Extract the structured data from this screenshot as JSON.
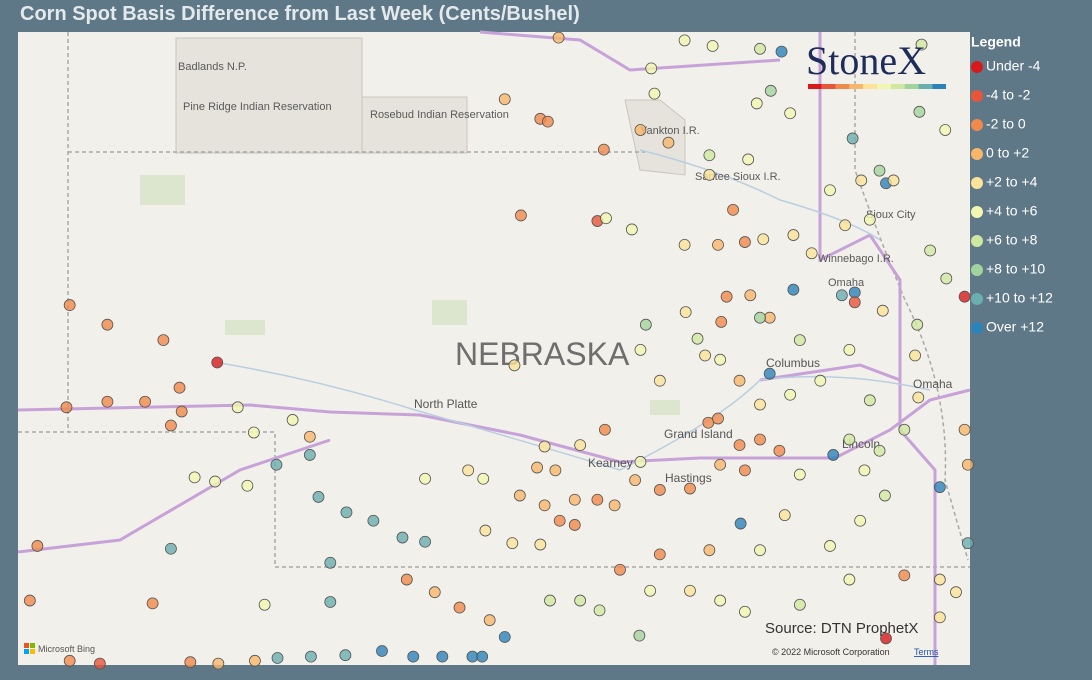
{
  "title": "Corn Spot Basis Difference from Last Week (Cents/Bushel)",
  "logo": "StoneX",
  "legend": {
    "title": "Legend",
    "items": [
      {
        "label": "Under -4",
        "color": "#d7191c"
      },
      {
        "label": "-4 to -2",
        "color": "#e8553a"
      },
      {
        "label": "-2 to 0",
        "color": "#f08a4b"
      },
      {
        "label": "0 to +2",
        "color": "#f8b66a"
      },
      {
        "label": "+2 to +4",
        "color": "#fde39a"
      },
      {
        "label": "+4 to +6",
        "color": "#f1f7b0"
      },
      {
        "label": "+6 to +8",
        "color": "#cfe8a0"
      },
      {
        "label": "+8 to +10",
        "color": "#a3d39c"
      },
      {
        "label": "+10 to +12",
        "color": "#6aaeb0"
      },
      {
        "label": "Over +12",
        "color": "#2b83ba"
      }
    ]
  },
  "map": {
    "lon_range": [
      -104.46,
      -95.62
    ],
    "lat_range": [
      39.25,
      43.77
    ],
    "labels": {
      "state": "NEBRASKA",
      "badlands": "Badlands N.P.",
      "pine_ridge": "Pine Ridge Indian Reservation",
      "rosebud": "Rosebud Indian Reservation",
      "yankton": "Yankton I.R.",
      "santee": "Santee Sioux I.R.",
      "sioux_city": "Sioux City",
      "winnebago": "Winnebago I.R.",
      "omaha_ir": "Omaha",
      "north_platte": "North Platte",
      "columbus": "Columbus",
      "grand_island": "Grand Island",
      "kearney": "Kearney",
      "hastings": "Hastings",
      "lincoln": "Lincoln",
      "omaha": "Omaha"
    },
    "source": "Source: DTN ProphetX",
    "copyright": "© 2022 Microsoft Corporation",
    "terms": "Terms",
    "bing": "Microsoft Bing"
  },
  "points": [
    [
      -103.98,
      41.82,
      2
    ],
    [
      -103.63,
      41.68,
      2
    ],
    [
      -102.61,
      41.41,
      0
    ],
    [
      -103.11,
      41.57,
      2
    ],
    [
      -102.96,
      41.23,
      2
    ],
    [
      -103.28,
      41.13,
      2
    ],
    [
      -104.01,
      41.09,
      2
    ],
    [
      -103.63,
      41.13,
      2
    ],
    [
      -102.94,
      41.06,
      2
    ],
    [
      -103.04,
      40.96,
      2
    ],
    [
      -102.42,
      41.09,
      5
    ],
    [
      -102.27,
      40.91,
      5
    ],
    [
      -101.91,
      41.0,
      5
    ],
    [
      -102.06,
      40.68,
      8
    ],
    [
      -101.75,
      40.75,
      8
    ],
    [
      -101.67,
      40.45,
      8
    ],
    [
      -101.41,
      40.34,
      8
    ],
    [
      -101.16,
      40.28,
      8
    ],
    [
      -100.89,
      40.16,
      8
    ],
    [
      -100.68,
      40.13,
      8
    ],
    [
      -101.56,
      39.98,
      8
    ],
    [
      -101.56,
      39.7,
      8
    ],
    [
      -103.04,
      40.08,
      8
    ],
    [
      -104.28,
      40.1,
      2
    ],
    [
      -104.35,
      39.71,
      2
    ],
    [
      -103.21,
      39.69,
      2
    ],
    [
      -102.17,
      39.68,
      5
    ],
    [
      -102.82,
      40.59,
      5
    ],
    [
      -102.63,
      40.56,
      5
    ],
    [
      -102.33,
      40.53,
      5
    ],
    [
      -101.75,
      40.88,
      3
    ],
    [
      -100.85,
      39.86,
      2
    ],
    [
      -100.59,
      39.77,
      3
    ],
    [
      -100.36,
      39.66,
      2
    ],
    [
      -100.08,
      39.57,
      3
    ],
    [
      -99.94,
      39.45,
      9
    ],
    [
      -101.08,
      39.35,
      9
    ],
    [
      -100.79,
      39.31,
      9
    ],
    [
      -100.52,
      39.31,
      9
    ],
    [
      -100.24,
      39.31,
      9
    ],
    [
      -100.15,
      39.31,
      9
    ],
    [
      -101.42,
      39.32,
      8
    ],
    [
      -101.74,
      39.31,
      8
    ],
    [
      -102.05,
      39.3,
      8
    ],
    [
      -102.86,
      39.27,
      2
    ],
    [
      -102.6,
      39.26,
      3
    ],
    [
      -100.68,
      40.58,
      5
    ],
    [
      -100.14,
      40.58,
      5
    ],
    [
      -100.28,
      40.64,
      4
    ],
    [
      -99.64,
      40.66,
      3
    ],
    [
      -99.47,
      40.64,
      3
    ],
    [
      -99.8,
      40.46,
      3
    ],
    [
      -99.57,
      40.39,
      3
    ],
    [
      -99.29,
      40.43,
      3
    ],
    [
      -99.08,
      40.43,
      2
    ],
    [
      -99.43,
      40.28,
      2
    ],
    [
      -99.29,
      40.25,
      2
    ],
    [
      -98.92,
      40.39,
      3
    ],
    [
      -98.73,
      40.57,
      3
    ],
    [
      -98.5,
      40.5,
      2
    ],
    [
      -98.22,
      40.51,
      2
    ],
    [
      -100.12,
      40.21,
      4
    ],
    [
      -99.87,
      40.12,
      4
    ],
    [
      -99.61,
      40.11,
      4
    ],
    [
      -99.01,
      40.93,
      2
    ],
    [
      -98.05,
      40.98,
      2
    ],
    [
      -97.96,
      41.01,
      2
    ],
    [
      -97.76,
      40.82,
      2
    ],
    [
      -97.57,
      40.86,
      2
    ],
    [
      -97.39,
      40.78,
      2
    ],
    [
      -97.71,
      40.64,
      2
    ],
    [
      -97.94,
      40.68,
      3
    ],
    [
      -97.48,
      41.33,
      9
    ],
    [
      -97.76,
      41.28,
      3
    ],
    [
      -97.57,
      41.11,
      4
    ],
    [
      -97.29,
      41.18,
      5
    ],
    [
      -97.01,
      41.28,
      5
    ],
    [
      -96.89,
      40.75,
      9
    ],
    [
      -96.74,
      40.86,
      6
    ],
    [
      -96.46,
      40.78,
      6
    ],
    [
      -96.23,
      40.93,
      6
    ],
    [
      -95.9,
      40.52,
      9
    ],
    [
      -96.41,
      40.46,
      6
    ],
    [
      -96.64,
      40.28,
      5
    ],
    [
      -96.92,
      40.1,
      5
    ],
    [
      -97.57,
      40.07,
      5
    ],
    [
      -97.75,
      40.26,
      9
    ],
    [
      -97.34,
      40.32,
      4
    ],
    [
      -98.04,
      40.07,
      3
    ],
    [
      -98.5,
      40.04,
      2
    ],
    [
      -98.87,
      39.93,
      2
    ],
    [
      -98.22,
      39.78,
      4
    ],
    [
      -97.94,
      39.71,
      5
    ],
    [
      -97.71,
      39.63,
      5
    ],
    [
      -97.2,
      39.68,
      6
    ],
    [
      -96.74,
      39.86,
      5
    ],
    [
      -96.23,
      39.89,
      2
    ],
    [
      -95.9,
      39.86,
      4
    ],
    [
      -96.4,
      39.44,
      0
    ],
    [
      -98.69,
      39.46,
      7
    ],
    [
      -99.52,
      39.71,
      6
    ],
    [
      -99.24,
      39.71,
      6
    ],
    [
      -99.06,
      39.64,
      6
    ],
    [
      -98.59,
      39.78,
      5
    ],
    [
      -97.93,
      41.7,
      2
    ],
    [
      -97.88,
      41.88,
      2
    ],
    [
      -97.66,
      41.89,
      3
    ],
    [
      -97.48,
      41.73,
      3
    ],
    [
      -97.57,
      41.73,
      7
    ],
    [
      -97.26,
      41.93,
      9
    ],
    [
      -96.69,
      41.91,
      9
    ],
    [
      -96.69,
      41.84,
      1
    ],
    [
      -96.81,
      41.89,
      8
    ],
    [
      -96.43,
      41.78,
      4
    ],
    [
      -96.11,
      41.68,
      6
    ],
    [
      -95.67,
      41.88,
      0
    ],
    [
      -96.13,
      41.46,
      4
    ],
    [
      -96.1,
      41.16,
      4
    ],
    [
      -95.84,
      42.01,
      6
    ],
    [
      -98.63,
      41.68,
      7
    ],
    [
      -98.15,
      41.58,
      6
    ],
    [
      -98.08,
      41.46,
      4
    ],
    [
      -98.26,
      41.77,
      4
    ],
    [
      -97.82,
      42.5,
      2
    ],
    [
      -97.71,
      42.27,
      2
    ],
    [
      -97.54,
      42.29,
      4
    ],
    [
      -97.26,
      42.32,
      4
    ],
    [
      -97.96,
      42.25,
      3
    ],
    [
      -98.27,
      42.25,
      4
    ],
    [
      -98.76,
      42.36,
      5
    ],
    [
      -99.08,
      42.42,
      1
    ],
    [
      -99.0,
      42.44,
      5
    ],
    [
      -99.79,
      42.46,
      2
    ],
    [
      -99.02,
      42.93,
      2
    ],
    [
      -99.61,
      43.15,
      2
    ],
    [
      -99.54,
      43.13,
      2
    ],
    [
      -99.94,
      43.29,
      3
    ],
    [
      -98.58,
      43.51,
      5
    ],
    [
      -98.55,
      43.33,
      5
    ],
    [
      -98.27,
      43.71,
      5
    ],
    [
      -98.01,
      43.67,
      5
    ],
    [
      -97.37,
      43.63,
      9
    ],
    [
      -97.57,
      43.65,
      6
    ],
    [
      -97.47,
      43.35,
      7
    ],
    [
      -97.6,
      43.26,
      5
    ],
    [
      -97.29,
      43.19,
      5
    ],
    [
      -96.71,
      43.01,
      8
    ],
    [
      -96.46,
      42.78,
      7
    ],
    [
      -96.4,
      42.69,
      9
    ],
    [
      -96.09,
      43.2,
      7
    ],
    [
      -96.63,
      42.71,
      4
    ],
    [
      -96.33,
      42.71,
      4
    ],
    [
      -98.04,
      42.89,
      6
    ],
    [
      -97.68,
      42.86,
      5
    ],
    [
      -98.04,
      42.75,
      4
    ],
    [
      -98.42,
      42.98,
      3
    ],
    [
      -98.68,
      43.07,
      3
    ],
    [
      -99.44,
      43.73,
      3
    ],
    [
      -96.07,
      43.68,
      6
    ],
    [
      -95.85,
      43.07,
      5
    ],
    [
      -96.78,
      42.39,
      4
    ],
    [
      -97.09,
      42.19,
      4
    ],
    [
      -96.55,
      42.43,
      5
    ],
    [
      -95.99,
      42.21,
      6
    ],
    [
      -96.92,
      42.64,
      5
    ],
    [
      -98.5,
      41.28,
      4
    ],
    [
      -98.68,
      41.5,
      5
    ],
    [
      -99.85,
      41.39,
      4
    ],
    [
      -97.94,
      41.43,
      5
    ],
    [
      -97.2,
      41.57,
      6
    ],
    [
      -96.74,
      41.5,
      5
    ],
    [
      -96.55,
      41.14,
      6
    ],
    [
      -96.6,
      40.64,
      5
    ],
    [
      -97.2,
      40.61,
      5
    ],
    [
      -95.67,
      40.93,
      3
    ],
    [
      -95.64,
      40.68,
      3
    ],
    [
      -95.64,
      40.12,
      8
    ],
    [
      -95.75,
      39.77,
      4
    ],
    [
      -95.9,
      39.59,
      4
    ],
    [
      -99.57,
      40.81,
      4
    ],
    [
      -99.24,
      40.82,
      4
    ],
    [
      -98.68,
      40.7,
      5
    ],
    [
      -103.98,
      39.28,
      2
    ],
    [
      -103.7,
      39.26,
      1
    ],
    [
      -102.26,
      39.28,
      3
    ]
  ]
}
